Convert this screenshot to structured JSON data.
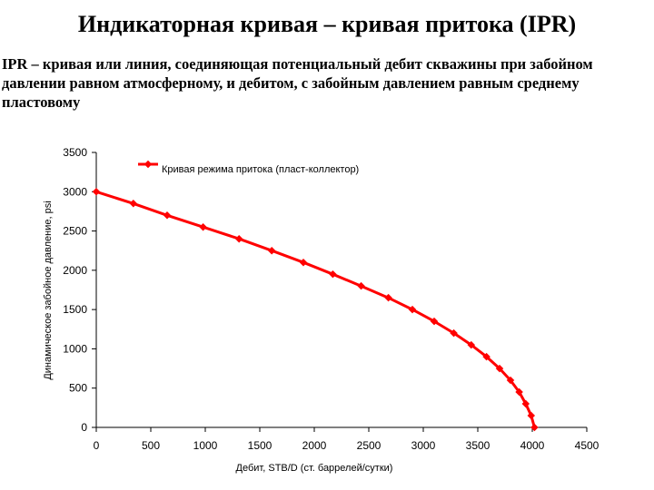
{
  "title": "Индикаторная кривая – кривая притока (IPR)",
  "description": "IPR – кривая или линия, соединяющая потенциальный дебит скважины при забойном давлении равном атмосферному, и дебитом, с забойным давлением равным среднему пластовому",
  "chart_data": {
    "type": "line",
    "xlabel": "Дебит, STB/D (ст. баррелей/сутки)",
    "ylabel": "Динамическое забойное давление, psi",
    "xlim": [
      0,
      4500
    ],
    "ylim": [
      0,
      3500
    ],
    "xticks": [
      0,
      500,
      1000,
      1500,
      2000,
      2500,
      3000,
      3500,
      4000,
      4500
    ],
    "yticks": [
      0,
      500,
      1000,
      1500,
      2000,
      2500,
      3000,
      3500
    ],
    "legend_position": "top",
    "grid": false,
    "series": [
      {
        "name": "Кривая режима притока (пласт-коллектор)",
        "color": "#ff0000",
        "x": [
          0,
          340,
          650,
          980,
          1310,
          1610,
          1900,
          2170,
          2430,
          2680,
          2900,
          3100,
          3280,
          3440,
          3580,
          3700,
          3800,
          3880,
          3940,
          3990,
          4020
        ],
        "y": [
          3000,
          2850,
          2700,
          2550,
          2400,
          2250,
          2100,
          1950,
          1800,
          1650,
          1500,
          1350,
          1200,
          1050,
          900,
          750,
          600,
          450,
          300,
          150,
          0
        ]
      }
    ]
  }
}
